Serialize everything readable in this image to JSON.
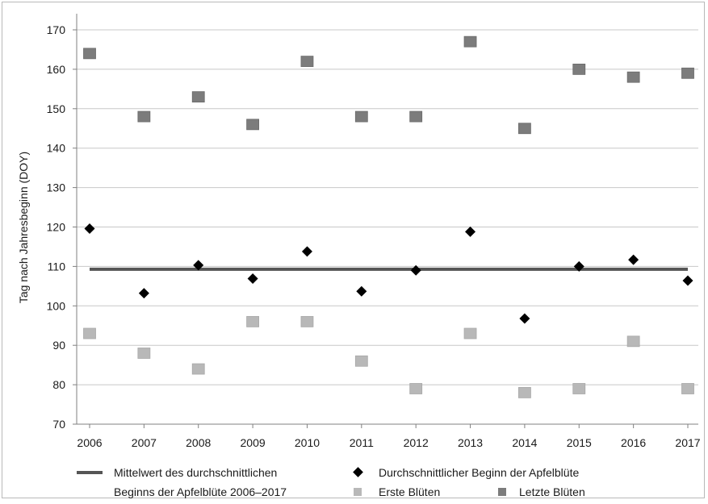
{
  "chart_data": {
    "type": "scatter",
    "ylabel": "Tag nach Jahresbeginn (DOY)",
    "xlabel": "",
    "title": "",
    "ylim": [
      70,
      170
    ],
    "yticks": [
      70,
      80,
      90,
      100,
      110,
      120,
      130,
      140,
      150,
      160,
      170
    ],
    "categories": [
      "2006",
      "2007",
      "2008",
      "2009",
      "2010",
      "2011",
      "2012",
      "2013",
      "2014",
      "2015",
      "2016",
      "2017"
    ],
    "grid": true,
    "legend_position": "bottom",
    "colors": {
      "mean": "#555555",
      "avg": "#000000",
      "first": "#b8b8b8",
      "last": "#7c7c7c",
      "grid": "#c8c8c8",
      "axis": "#808080"
    },
    "series": [
      {
        "name": "Durchschnittlicher Beginn der Apfelblüte",
        "marker": "diamond",
        "values": [
          119.6,
          103.2,
          110.3,
          106.9,
          113.8,
          103.7,
          109.0,
          118.8,
          96.8,
          110.0,
          111.7,
          106.4
        ]
      },
      {
        "name": "Erste Blüten",
        "marker": "square",
        "values": [
          93,
          88,
          84,
          96,
          96,
          86,
          79,
          93,
          78,
          79,
          91,
          79
        ]
      },
      {
        "name": "Letzte Blüten",
        "marker": "square",
        "values": [
          164,
          148,
          153,
          146,
          162,
          148,
          148,
          167,
          145,
          160,
          158,
          159
        ]
      }
    ],
    "mean_line": {
      "name_line1": "Mittelwert des durchschnittlichen",
      "name_line2": "Beginns der Apfelblüte 2006–2017",
      "value": 109.3
    }
  }
}
